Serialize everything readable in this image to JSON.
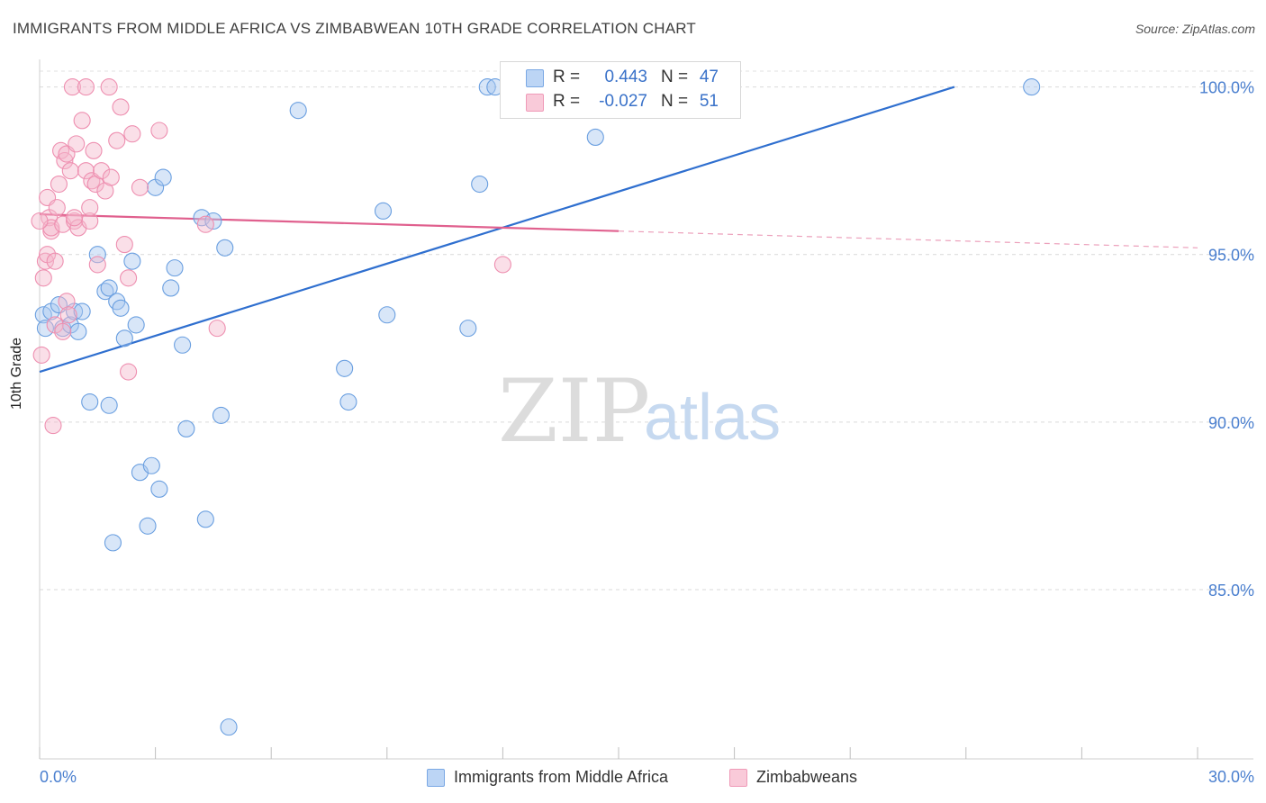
{
  "title": "IMMIGRANTS FROM MIDDLE AFRICA VS ZIMBABWEAN 10TH GRADE CORRELATION CHART",
  "source": "Source: ZipAtlas.com",
  "watermark": {
    "part1": "ZIP",
    "part2": "atlas"
  },
  "legend": {
    "rows": [
      {
        "r_label": "R =",
        "r_value": "0.443",
        "n_label": "N =",
        "n_value": "47",
        "color": "#a9c8f0"
      },
      {
        "r_label": "R =",
        "r_value": "-0.027",
        "n_label": "N =",
        "n_value": "51",
        "color": "#f5b8cc"
      }
    ]
  },
  "bottom_legend": [
    {
      "label": "Immigrants from Middle Africa",
      "color": "#a9c8f0"
    },
    {
      "label": "Zimbabweans",
      "color": "#f5b8cc"
    }
  ],
  "chart_data": {
    "type": "scatter",
    "title": "IMMIGRANTS FROM MIDDLE AFRICA VS ZIMBABWEAN 10TH GRADE CORRELATION CHART",
    "xlabel": "",
    "ylabel": "10th Grade",
    "xlim": [
      0,
      30
    ],
    "ylim": [
      80.5,
      100.5
    ],
    "x_tick_labels": [
      {
        "value": 0,
        "label": "0.0%"
      },
      {
        "value": 30,
        "label": "30.0%"
      }
    ],
    "y_tick_labels": [
      {
        "value": 100,
        "label": "100.0%"
      },
      {
        "value": 95,
        "label": "95.0%"
      },
      {
        "value": 90,
        "label": "90.0%"
      },
      {
        "value": 85,
        "label": "85.0%"
      }
    ],
    "series": [
      {
        "name": "Immigrants from Middle Africa",
        "color": "#6a9fe0",
        "fill": "#a9c8f0",
        "trend": {
          "x": [
            0,
            23.7
          ],
          "y": [
            91.5,
            100.0
          ],
          "dashed_to": null,
          "line_color": "#2f6fcf"
        },
        "points": [
          [
            0.1,
            93.2
          ],
          [
            0.15,
            92.8
          ],
          [
            0.3,
            93.3
          ],
          [
            0.5,
            93.5
          ],
          [
            0.6,
            92.8
          ],
          [
            0.8,
            92.9
          ],
          [
            0.9,
            93.3
          ],
          [
            1.0,
            92.7
          ],
          [
            1.1,
            93.3
          ],
          [
            1.3,
            90.6
          ],
          [
            1.5,
            95.0
          ],
          [
            1.7,
            93.9
          ],
          [
            1.8,
            94.0
          ],
          [
            1.8,
            90.5
          ],
          [
            1.9,
            86.4
          ],
          [
            2.0,
            93.6
          ],
          [
            2.1,
            93.4
          ],
          [
            2.2,
            92.5
          ],
          [
            2.4,
            94.8
          ],
          [
            2.5,
            92.9
          ],
          [
            2.6,
            88.5
          ],
          [
            2.8,
            86.9
          ],
          [
            2.9,
            88.7
          ],
          [
            3.0,
            97.0
          ],
          [
            3.1,
            88.0
          ],
          [
            3.2,
            97.3
          ],
          [
            3.4,
            94.0
          ],
          [
            3.5,
            94.6
          ],
          [
            3.7,
            92.3
          ],
          [
            3.8,
            89.8
          ],
          [
            4.2,
            96.1
          ],
          [
            4.3,
            87.1
          ],
          [
            4.5,
            96.0
          ],
          [
            4.7,
            90.2
          ],
          [
            4.8,
            95.2
          ],
          [
            4.9,
            80.9
          ],
          [
            6.7,
            99.3
          ],
          [
            7.9,
            91.6
          ],
          [
            8.0,
            90.6
          ],
          [
            8.9,
            96.3
          ],
          [
            9.0,
            93.2
          ],
          [
            11.1,
            92.8
          ],
          [
            11.4,
            97.1
          ],
          [
            11.6,
            100.0
          ],
          [
            11.8,
            100.0
          ],
          [
            14.4,
            98.5
          ],
          [
            25.7,
            100.0
          ]
        ]
      },
      {
        "name": "Zimbabweans",
        "color": "#ee8fb0",
        "fill": "#f5b8cc",
        "trend": {
          "x": [
            0,
            15.0
          ],
          "y": [
            96.2,
            95.7
          ],
          "dashed_to": [
            30,
            95.2
          ],
          "line_color": "#e0608e"
        },
        "points": [
          [
            0.05,
            92.0
          ],
          [
            0.1,
            94.3
          ],
          [
            0.15,
            94.8
          ],
          [
            0.2,
            95.0
          ],
          [
            0.2,
            96.7
          ],
          [
            0.25,
            96.1
          ],
          [
            0.3,
            95.7
          ],
          [
            0.3,
            95.8
          ],
          [
            0.35,
            89.9
          ],
          [
            0.4,
            94.8
          ],
          [
            0.4,
            92.9
          ],
          [
            0.45,
            96.4
          ],
          [
            0.5,
            97.1
          ],
          [
            0.55,
            98.1
          ],
          [
            0.6,
            95.9
          ],
          [
            0.6,
            92.7
          ],
          [
            0.65,
            97.8
          ],
          [
            0.7,
            98.0
          ],
          [
            0.7,
            93.6
          ],
          [
            0.75,
            93.2
          ],
          [
            0.8,
            97.5
          ],
          [
            0.85,
            100.0
          ],
          [
            0.9,
            96.0
          ],
          [
            0.95,
            98.3
          ],
          [
            1.0,
            95.8
          ],
          [
            1.1,
            99.0
          ],
          [
            1.2,
            97.5
          ],
          [
            1.2,
            100.0
          ],
          [
            1.3,
            96.0
          ],
          [
            1.3,
            96.4
          ],
          [
            1.35,
            97.2
          ],
          [
            1.4,
            98.1
          ],
          [
            1.45,
            97.1
          ],
          [
            1.5,
            94.7
          ],
          [
            1.6,
            97.5
          ],
          [
            1.7,
            96.9
          ],
          [
            1.8,
            100.0
          ],
          [
            1.85,
            97.3
          ],
          [
            2.0,
            98.4
          ],
          [
            2.1,
            99.4
          ],
          [
            2.2,
            95.3
          ],
          [
            2.3,
            91.5
          ],
          [
            2.3,
            94.3
          ],
          [
            2.4,
            98.6
          ],
          [
            2.6,
            97.0
          ],
          [
            3.1,
            98.7
          ],
          [
            4.3,
            95.9
          ],
          [
            4.6,
            92.8
          ],
          [
            12.0,
            94.7
          ],
          [
            0.0,
            96.0
          ],
          [
            0.9,
            96.1
          ]
        ]
      }
    ]
  }
}
